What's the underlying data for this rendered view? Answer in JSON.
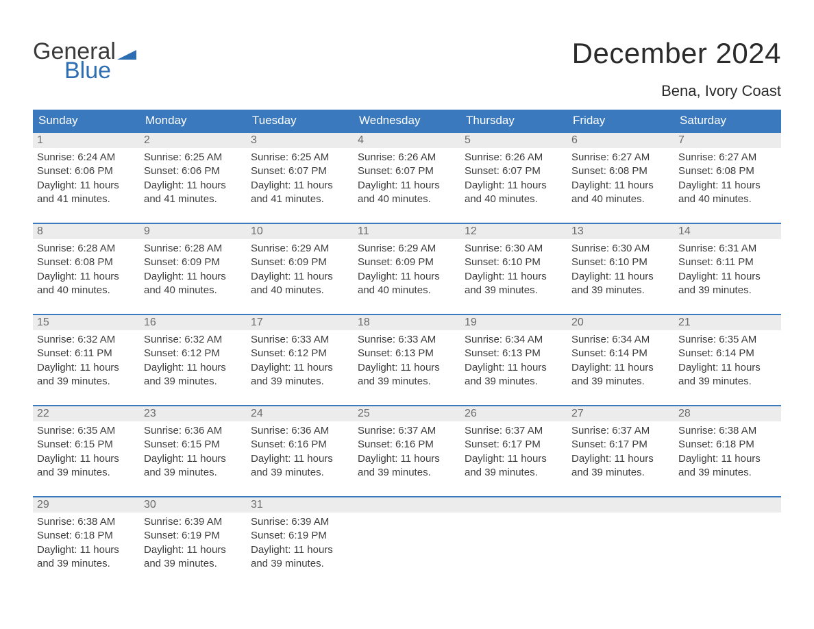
{
  "logo": {
    "text_top": "General",
    "text_bottom": "Blue",
    "flag_color": "#2d6db2",
    "top_color": "#3a3a3a",
    "bottom_color": "#2d6db2"
  },
  "title": "December 2024",
  "location": "Bena, Ivory Coast",
  "colors": {
    "header_bg": "#3a79bd",
    "header_text": "#ffffff",
    "row_border": "#3a79bd",
    "daynum_bg": "#ececec",
    "daynum_text": "#6b6b6b",
    "body_text": "#3d3d3d",
    "page_bg": "#ffffff"
  },
  "fonts": {
    "title_size": 42,
    "location_size": 22,
    "header_size": 17,
    "daynum_size": 16,
    "body_size": 15
  },
  "weekday_headers": [
    "Sunday",
    "Monday",
    "Tuesday",
    "Wednesday",
    "Thursday",
    "Friday",
    "Saturday"
  ],
  "weeks": [
    [
      {
        "day": "1",
        "sunrise": "Sunrise: 6:24 AM",
        "sunset": "Sunset: 6:06 PM",
        "daylight1": "Daylight: 11 hours",
        "daylight2": "and 41 minutes."
      },
      {
        "day": "2",
        "sunrise": "Sunrise: 6:25 AM",
        "sunset": "Sunset: 6:06 PM",
        "daylight1": "Daylight: 11 hours",
        "daylight2": "and 41 minutes."
      },
      {
        "day": "3",
        "sunrise": "Sunrise: 6:25 AM",
        "sunset": "Sunset: 6:07 PM",
        "daylight1": "Daylight: 11 hours",
        "daylight2": "and 41 minutes."
      },
      {
        "day": "4",
        "sunrise": "Sunrise: 6:26 AM",
        "sunset": "Sunset: 6:07 PM",
        "daylight1": "Daylight: 11 hours",
        "daylight2": "and 40 minutes."
      },
      {
        "day": "5",
        "sunrise": "Sunrise: 6:26 AM",
        "sunset": "Sunset: 6:07 PM",
        "daylight1": "Daylight: 11 hours",
        "daylight2": "and 40 minutes."
      },
      {
        "day": "6",
        "sunrise": "Sunrise: 6:27 AM",
        "sunset": "Sunset: 6:08 PM",
        "daylight1": "Daylight: 11 hours",
        "daylight2": "and 40 minutes."
      },
      {
        "day": "7",
        "sunrise": "Sunrise: 6:27 AM",
        "sunset": "Sunset: 6:08 PM",
        "daylight1": "Daylight: 11 hours",
        "daylight2": "and 40 minutes."
      }
    ],
    [
      {
        "day": "8",
        "sunrise": "Sunrise: 6:28 AM",
        "sunset": "Sunset: 6:08 PM",
        "daylight1": "Daylight: 11 hours",
        "daylight2": "and 40 minutes."
      },
      {
        "day": "9",
        "sunrise": "Sunrise: 6:28 AM",
        "sunset": "Sunset: 6:09 PM",
        "daylight1": "Daylight: 11 hours",
        "daylight2": "and 40 minutes."
      },
      {
        "day": "10",
        "sunrise": "Sunrise: 6:29 AM",
        "sunset": "Sunset: 6:09 PM",
        "daylight1": "Daylight: 11 hours",
        "daylight2": "and 40 minutes."
      },
      {
        "day": "11",
        "sunrise": "Sunrise: 6:29 AM",
        "sunset": "Sunset: 6:09 PM",
        "daylight1": "Daylight: 11 hours",
        "daylight2": "and 40 minutes."
      },
      {
        "day": "12",
        "sunrise": "Sunrise: 6:30 AM",
        "sunset": "Sunset: 6:10 PM",
        "daylight1": "Daylight: 11 hours",
        "daylight2": "and 39 minutes."
      },
      {
        "day": "13",
        "sunrise": "Sunrise: 6:30 AM",
        "sunset": "Sunset: 6:10 PM",
        "daylight1": "Daylight: 11 hours",
        "daylight2": "and 39 minutes."
      },
      {
        "day": "14",
        "sunrise": "Sunrise: 6:31 AM",
        "sunset": "Sunset: 6:11 PM",
        "daylight1": "Daylight: 11 hours",
        "daylight2": "and 39 minutes."
      }
    ],
    [
      {
        "day": "15",
        "sunrise": "Sunrise: 6:32 AM",
        "sunset": "Sunset: 6:11 PM",
        "daylight1": "Daylight: 11 hours",
        "daylight2": "and 39 minutes."
      },
      {
        "day": "16",
        "sunrise": "Sunrise: 6:32 AM",
        "sunset": "Sunset: 6:12 PM",
        "daylight1": "Daylight: 11 hours",
        "daylight2": "and 39 minutes."
      },
      {
        "day": "17",
        "sunrise": "Sunrise: 6:33 AM",
        "sunset": "Sunset: 6:12 PM",
        "daylight1": "Daylight: 11 hours",
        "daylight2": "and 39 minutes."
      },
      {
        "day": "18",
        "sunrise": "Sunrise: 6:33 AM",
        "sunset": "Sunset: 6:13 PM",
        "daylight1": "Daylight: 11 hours",
        "daylight2": "and 39 minutes."
      },
      {
        "day": "19",
        "sunrise": "Sunrise: 6:34 AM",
        "sunset": "Sunset: 6:13 PM",
        "daylight1": "Daylight: 11 hours",
        "daylight2": "and 39 minutes."
      },
      {
        "day": "20",
        "sunrise": "Sunrise: 6:34 AM",
        "sunset": "Sunset: 6:14 PM",
        "daylight1": "Daylight: 11 hours",
        "daylight2": "and 39 minutes."
      },
      {
        "day": "21",
        "sunrise": "Sunrise: 6:35 AM",
        "sunset": "Sunset: 6:14 PM",
        "daylight1": "Daylight: 11 hours",
        "daylight2": "and 39 minutes."
      }
    ],
    [
      {
        "day": "22",
        "sunrise": "Sunrise: 6:35 AM",
        "sunset": "Sunset: 6:15 PM",
        "daylight1": "Daylight: 11 hours",
        "daylight2": "and 39 minutes."
      },
      {
        "day": "23",
        "sunrise": "Sunrise: 6:36 AM",
        "sunset": "Sunset: 6:15 PM",
        "daylight1": "Daylight: 11 hours",
        "daylight2": "and 39 minutes."
      },
      {
        "day": "24",
        "sunrise": "Sunrise: 6:36 AM",
        "sunset": "Sunset: 6:16 PM",
        "daylight1": "Daylight: 11 hours",
        "daylight2": "and 39 minutes."
      },
      {
        "day": "25",
        "sunrise": "Sunrise: 6:37 AM",
        "sunset": "Sunset: 6:16 PM",
        "daylight1": "Daylight: 11 hours",
        "daylight2": "and 39 minutes."
      },
      {
        "day": "26",
        "sunrise": "Sunrise: 6:37 AM",
        "sunset": "Sunset: 6:17 PM",
        "daylight1": "Daylight: 11 hours",
        "daylight2": "and 39 minutes."
      },
      {
        "day": "27",
        "sunrise": "Sunrise: 6:37 AM",
        "sunset": "Sunset: 6:17 PM",
        "daylight1": "Daylight: 11 hours",
        "daylight2": "and 39 minutes."
      },
      {
        "day": "28",
        "sunrise": "Sunrise: 6:38 AM",
        "sunset": "Sunset: 6:18 PM",
        "daylight1": "Daylight: 11 hours",
        "daylight2": "and 39 minutes."
      }
    ],
    [
      {
        "day": "29",
        "sunrise": "Sunrise: 6:38 AM",
        "sunset": "Sunset: 6:18 PM",
        "daylight1": "Daylight: 11 hours",
        "daylight2": "and 39 minutes."
      },
      {
        "day": "30",
        "sunrise": "Sunrise: 6:39 AM",
        "sunset": "Sunset: 6:19 PM",
        "daylight1": "Daylight: 11 hours",
        "daylight2": "and 39 minutes."
      },
      {
        "day": "31",
        "sunrise": "Sunrise: 6:39 AM",
        "sunset": "Sunset: 6:19 PM",
        "daylight1": "Daylight: 11 hours",
        "daylight2": "and 39 minutes."
      },
      {
        "empty": true
      },
      {
        "empty": true
      },
      {
        "empty": true
      },
      {
        "empty": true
      }
    ]
  ]
}
